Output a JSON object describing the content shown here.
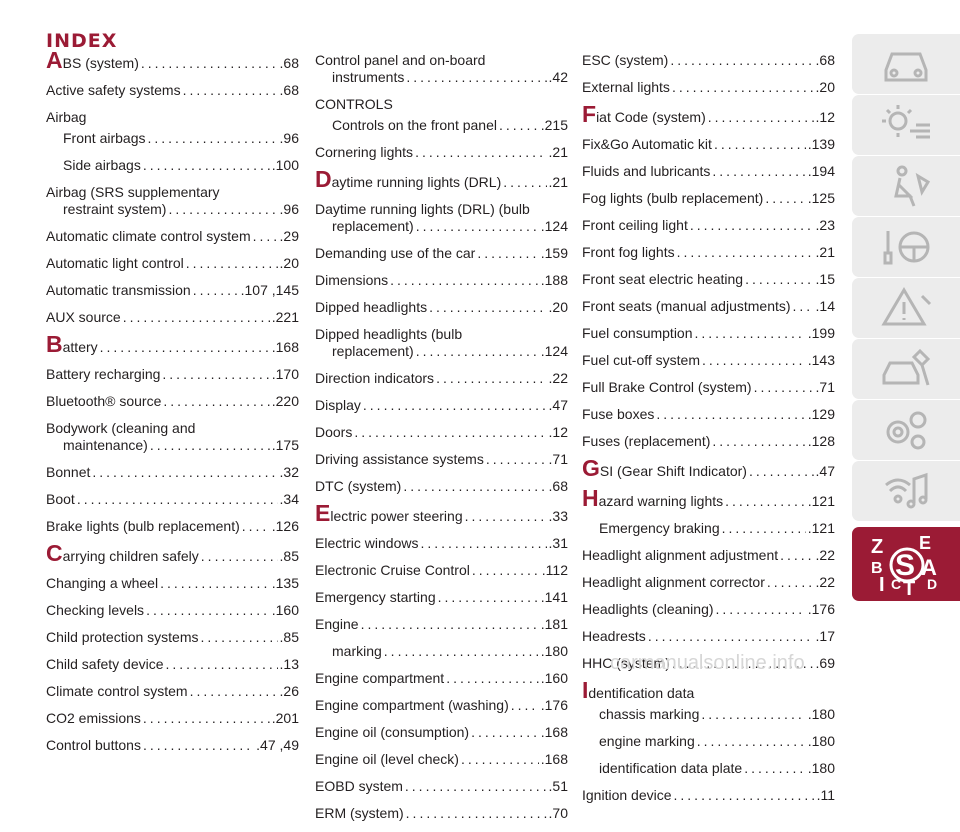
{
  "title": "INDEX",
  "columns": [
    [
      {
        "type": "entry",
        "letter": "A",
        "text": "BS (system)",
        "page": ".68"
      },
      {
        "type": "entry",
        "text": "Active safety systems",
        "page": ".68"
      },
      {
        "type": "head",
        "text": "Airbag"
      },
      {
        "type": "entry",
        "sub": true,
        "text": "Front airbags",
        "page": ".96"
      },
      {
        "type": "entry",
        "sub": true,
        "text": "Side airbags",
        "page": ".100"
      },
      {
        "type": "ml",
        "lines": [
          "Airbag (SRS supplementary"
        ],
        "cont": "restraint system)",
        "page": ".96"
      },
      {
        "type": "entry",
        "text": "Automatic climate control system",
        "page": ".29"
      },
      {
        "type": "entry",
        "text": "Automatic light control",
        "page": ".20"
      },
      {
        "type": "entry",
        "text": "Automatic transmission",
        "page": ".107 ,145"
      },
      {
        "type": "entry",
        "text": "AUX source",
        "page": ".221"
      },
      {
        "type": "entry",
        "letter": "B",
        "text": "attery",
        "page": ".168"
      },
      {
        "type": "entry",
        "text": "Battery recharging",
        "page": ".170"
      },
      {
        "type": "entry",
        "text": "Bluetooth® source",
        "page": ".220"
      },
      {
        "type": "ml",
        "lines": [
          "Bodywork (cleaning and"
        ],
        "cont": "maintenance)",
        "page": ".175"
      },
      {
        "type": "entry",
        "text": "Bonnet",
        "page": ".32"
      },
      {
        "type": "entry",
        "text": "Boot",
        "page": ".34"
      },
      {
        "type": "entry",
        "text": "Brake lights (bulb replacement)",
        "page": ".126"
      },
      {
        "type": "entry",
        "letter": "C",
        "text": "arrying children safely",
        "page": ".85"
      },
      {
        "type": "entry",
        "text": "Changing a wheel",
        "page": ".135"
      },
      {
        "type": "entry",
        "text": "Checking levels",
        "page": ".160"
      },
      {
        "type": "entry",
        "text": "Child protection systems",
        "page": ".85"
      },
      {
        "type": "entry",
        "text": "Child safety device",
        "page": ".13"
      },
      {
        "type": "entry",
        "text": "Climate control system",
        "page": ".26"
      },
      {
        "type": "entry",
        "text": "CO2 emissions",
        "page": ".201"
      },
      {
        "type": "entry",
        "text": "Control buttons",
        "page": ".47 ,49"
      }
    ],
    [
      {
        "type": "ml",
        "lines": [
          "Control panel and on-board"
        ],
        "cont": "instruments",
        "page": ".42"
      },
      {
        "type": "head",
        "text": "CONTROLS"
      },
      {
        "type": "entry",
        "sub": true,
        "text": "Controls on the front panel",
        "page": ".215"
      },
      {
        "type": "entry",
        "text": "Cornering lights",
        "page": ".21"
      },
      {
        "type": "entry",
        "letter": "D",
        "text": "aytime running lights (DRL)",
        "page": ".21"
      },
      {
        "type": "ml",
        "lines": [
          "Daytime running lights (DRL) (bulb"
        ],
        "cont": "replacement)",
        "page": ".124"
      },
      {
        "type": "entry",
        "text": "Demanding use of the car",
        "page": ".159"
      },
      {
        "type": "entry",
        "text": "Dimensions",
        "page": ".188"
      },
      {
        "type": "entry",
        "text": "Dipped headlights",
        "page": ".20"
      },
      {
        "type": "ml",
        "lines": [
          "Dipped headlights (bulb"
        ],
        "cont": "replacement)",
        "page": ".124"
      },
      {
        "type": "entry",
        "text": "Direction indicators",
        "page": ".22"
      },
      {
        "type": "entry",
        "text": "Display",
        "page": ".47"
      },
      {
        "type": "entry",
        "text": "Doors",
        "page": ".12"
      },
      {
        "type": "entry",
        "text": "Driving assistance systems",
        "page": ".71"
      },
      {
        "type": "entry",
        "text": "DTC (system)",
        "page": ".68"
      },
      {
        "type": "entry",
        "letter": "E",
        "text": "lectric power steering",
        "page": ".33"
      },
      {
        "type": "entry",
        "text": "Electric windows",
        "page": ".31"
      },
      {
        "type": "entry",
        "text": "Electronic Cruise Control",
        "page": ".112"
      },
      {
        "type": "entry",
        "text": "Emergency starting",
        "page": ".141"
      },
      {
        "type": "entry",
        "text": "Engine",
        "page": ".181"
      },
      {
        "type": "entry",
        "sub": true,
        "text": "marking",
        "page": ".180"
      },
      {
        "type": "entry",
        "text": "Engine compartment",
        "page": ".160"
      },
      {
        "type": "entry",
        "text": "Engine compartment (washing)",
        "page": ".176"
      },
      {
        "type": "entry",
        "text": "Engine oil (consumption)",
        "page": ".168"
      },
      {
        "type": "entry",
        "text": "Engine oil (level check)",
        "page": ".168"
      },
      {
        "type": "entry",
        "text": "EOBD system",
        "page": ".51"
      },
      {
        "type": "entry",
        "text": "ERM (system)",
        "page": ".70"
      }
    ],
    [
      {
        "type": "entry",
        "text": "ESC (system)",
        "page": ".68"
      },
      {
        "type": "entry",
        "text": "External lights",
        "page": ".20"
      },
      {
        "type": "entry",
        "letter": "F",
        "text": "iat Code (system)",
        "page": ".12"
      },
      {
        "type": "entry",
        "text": "Fix&Go Automatic kit",
        "page": ".139"
      },
      {
        "type": "entry",
        "text": "Fluids and lubricants",
        "page": ".194"
      },
      {
        "type": "entry",
        "text": "Fog lights (bulb replacement)",
        "page": ".125"
      },
      {
        "type": "entry",
        "text": "Front ceiling light",
        "page": ".23"
      },
      {
        "type": "entry",
        "text": "Front fog lights",
        "page": ".21"
      },
      {
        "type": "entry",
        "text": "Front seat electric heating",
        "page": ".15"
      },
      {
        "type": "entry",
        "text": "Front seats (manual adjustments)",
        "page": ".14"
      },
      {
        "type": "entry",
        "text": "Fuel consumption",
        "page": ".199"
      },
      {
        "type": "entry",
        "text": "Fuel cut-off system",
        "page": ".143"
      },
      {
        "type": "entry",
        "text": "Full Brake Control (system)",
        "page": ".71"
      },
      {
        "type": "entry",
        "text": "Fuse boxes",
        "page": ".129"
      },
      {
        "type": "entry",
        "text": "Fuses (replacement)",
        "page": ".128"
      },
      {
        "type": "entry",
        "letter": "G",
        "text": "SI (Gear Shift Indicator)",
        "page": ".47"
      },
      {
        "type": "entry",
        "letter": "H",
        "text": "azard warning lights",
        "page": ".121"
      },
      {
        "type": "entry",
        "sub": true,
        "text": "Emergency braking",
        "page": ".121"
      },
      {
        "type": "entry",
        "text": "Headlight alignment adjustment",
        "page": ".22"
      },
      {
        "type": "entry",
        "text": "Headlight alignment corrector",
        "page": ".22"
      },
      {
        "type": "entry",
        "text": "Headlights (cleaning)",
        "page": ".176"
      },
      {
        "type": "entry",
        "text": "Headrests",
        "page": ".17"
      },
      {
        "type": "entry",
        "text": "HHC (system)",
        "page": ".69"
      },
      {
        "type": "head",
        "letter": "I",
        "text": "dentification data"
      },
      {
        "type": "entry",
        "sub": true,
        "text": "chassis marking",
        "page": ".180"
      },
      {
        "type": "entry",
        "sub": true,
        "text": "engine marking",
        "page": ".180"
      },
      {
        "type": "entry",
        "sub": true,
        "text": "identification data plate",
        "page": ".180"
      },
      {
        "type": "entry",
        "text": "Ignition device",
        "page": ".11"
      }
    ]
  ],
  "sidebar": [
    {
      "icon": "car-overview-icon"
    },
    {
      "icon": "dashboard-lights-icon"
    },
    {
      "icon": "seat-safety-icon"
    },
    {
      "icon": "key-steering-wheel-icon"
    },
    {
      "icon": "warning-triangle-icon"
    },
    {
      "icon": "service-car-icon"
    },
    {
      "icon": "gears-icon"
    },
    {
      "icon": "multimedia-icon"
    },
    {
      "icon": "index-icon",
      "active": true
    }
  ],
  "index_tab_letters": [
    "Z",
    "E",
    "S",
    "A",
    "B",
    "I",
    "C",
    "T",
    "D"
  ],
  "watermark": "carmanualsonline.info",
  "colors": {
    "accent": "#9b1b35",
    "text": "#231f20",
    "tab": "#ececec",
    "tab_icon": "#b5b5b5"
  }
}
